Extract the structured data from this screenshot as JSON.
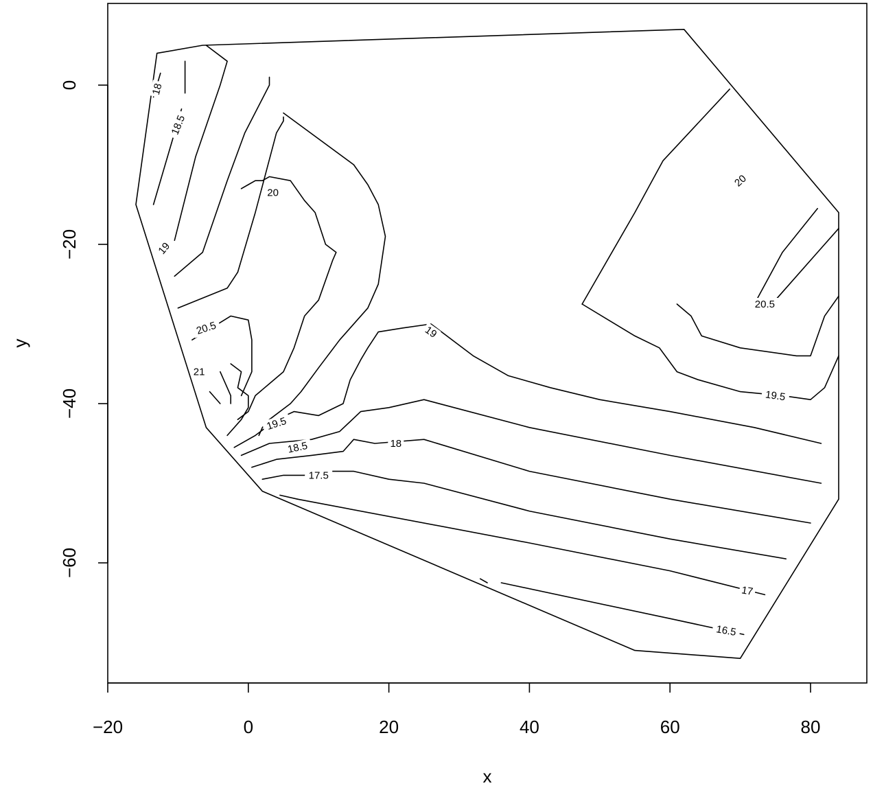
{
  "chart_data": {
    "type": "contour",
    "xlabel": "x",
    "ylabel": "y",
    "xlim": [
      -20,
      88
    ],
    "ylim": [
      -75,
      10
    ],
    "x_ticks": [
      -20,
      0,
      20,
      40,
      60,
      80
    ],
    "y_ticks": [
      0,
      -20,
      -40,
      -60
    ],
    "x_tick_labels": [
      "−20",
      "0",
      "20",
      "40",
      "60",
      "80"
    ],
    "y_tick_labels": [
      "0",
      "−20",
      "−40",
      "−60"
    ],
    "grid": false,
    "legend": "none",
    "hull": [
      [
        -16,
        -15
      ],
      [
        -13,
        4
      ],
      [
        -6.5,
        5
      ],
      [
        62,
        7
      ],
      [
        84,
        -16
      ],
      [
        84,
        -52
      ],
      [
        70,
        -72
      ],
      [
        55,
        -71
      ],
      [
        2,
        -51
      ],
      [
        -6,
        -43
      ],
      [
        -16,
        -15
      ]
    ],
    "contours": [
      {
        "level": 18,
        "label": "18",
        "segments": [
          [
            [
              -13.5,
              -1.5
            ],
            [
              -12.5,
              1.5
            ]
          ]
        ]
      },
      {
        "level": 18.5,
        "label": "18.5",
        "segments": [
          [
            [
              -13.5,
              -15
            ],
            [
              -9.5,
              -3
            ]
          ],
          [
            [
              -9,
              -1
            ],
            [
              -9,
              3
            ]
          ]
        ]
      },
      {
        "level": 19,
        "label": "19",
        "segments": [
          [
            [
              -10.5,
              -19.5
            ],
            [
              -7.5,
              -9
            ],
            [
              -4,
              0
            ],
            [
              -3,
              3
            ],
            [
              -6,
              5
            ]
          ]
        ]
      },
      {
        "level": 19.5,
        "label": "19.5",
        "segments": [
          [
            [
              -10.5,
              -24
            ],
            [
              -6.5,
              -21
            ],
            [
              -3,
              -12
            ],
            [
              -0.5,
              -6
            ],
            [
              3,
              0
            ],
            [
              3,
              1
            ]
          ]
        ]
      },
      {
        "level": 20,
        "label": "20",
        "segments": [
          [
            [
              -10,
              -28
            ],
            [
              -3,
              -25.5
            ],
            [
              -1.5,
              -23.5
            ],
            [
              1,
              -16
            ],
            [
              4,
              -6
            ],
            [
              5,
              -4.5
            ],
            [
              5,
              -4
            ]
          ],
          [
            [
              5,
              -3.5
            ],
            [
              15,
              -10
            ],
            [
              17,
              -12.5
            ],
            [
              18.5,
              -15
            ],
            [
              19.5,
              -19
            ],
            [
              18.5,
              -25
            ],
            [
              17,
              -28
            ],
            [
              13,
              -32
            ],
            [
              10,
              -35.5
            ],
            [
              7.5,
              -38.5
            ],
            [
              6,
              -40
            ],
            [
              3,
              -42
            ],
            [
              2,
              -43
            ],
            [
              1.5,
              -44
            ]
          ]
        ]
      },
      {
        "level": 20.5,
        "label": "20.5",
        "segments": [
          [
            [
              -1.5,
              -42
            ],
            [
              0,
              -41
            ],
            [
              0.5,
              -40
            ],
            [
              1,
              -39
            ],
            [
              3,
              -37.5
            ],
            [
              5,
              -36
            ],
            [
              6.5,
              -33
            ],
            [
              8,
              -29
            ],
            [
              10,
              -27
            ],
            [
              12,
              -22
            ],
            [
              12.5,
              -21
            ],
            [
              11,
              -20
            ],
            [
              9.5,
              -16
            ],
            [
              8,
              -14.5
            ],
            [
              6,
              -12
            ],
            [
              3,
              -11.5
            ],
            [
              2,
              -12
            ],
            [
              1,
              -12
            ],
            [
              0,
              -12.5
            ],
            [
              -1,
              -13
            ]
          ]
        ]
      },
      {
        "level": 21,
        "label": "21",
        "segments": [
          [
            [
              -5.5,
              -38.5
            ],
            [
              -4,
              -40
            ]
          ],
          [
            [
              -4,
              -36
            ],
            [
              -3,
              -38
            ],
            [
              -2.5,
              -39
            ],
            [
              -2.5,
              -40
            ]
          ]
        ]
      },
      {
        "level": 19.5,
        "label": "19.5",
        "segments": [
          [
            [
              -3,
              -44
            ],
            [
              -1,
              -42
            ],
            [
              0,
              -40.5
            ],
            [
              0,
              -39
            ],
            [
              -1.5,
              -38
            ],
            [
              -1,
              -36
            ],
            [
              -2.5,
              -35
            ]
          ]
        ]
      },
      {
        "level": 20.5,
        "label": "20.5",
        "segments": [
          [
            [
              -8,
              -32
            ],
            [
              -2.5,
              -29
            ],
            [
              0,
              -29.5
            ],
            [
              0.5,
              -32
            ],
            [
              0.5,
              -36
            ],
            [
              -1,
              -39
            ]
          ]
        ]
      },
      {
        "level": 19,
        "label": "19",
        "segments": [
          [
            [
              -2,
              -45.5
            ],
            [
              1,
              -44
            ],
            [
              4,
              -42
            ],
            [
              6.5,
              -41
            ],
            [
              10,
              -41.5
            ],
            [
              13.5,
              -40
            ],
            [
              14.5,
              -37
            ],
            [
              16,
              -34.5
            ],
            [
              17,
              -33
            ],
            [
              18.5,
              -31
            ],
            [
              22,
              -30.5
            ],
            [
              26,
              -30
            ],
            [
              32,
              -34
            ],
            [
              37,
              -36.5
            ],
            [
              43,
              -38
            ],
            [
              50,
              -39.5
            ],
            [
              60,
              -41
            ],
            [
              72,
              -43
            ],
            [
              81.5,
              -45
            ]
          ]
        ]
      },
      {
        "level": 18.5,
        "label": "18.5",
        "segments": [
          [
            [
              -1,
              -46.5
            ],
            [
              3,
              -45
            ],
            [
              9,
              -44.5
            ],
            [
              13,
              -43.5
            ],
            [
              16,
              -41
            ],
            [
              20,
              -40.5
            ],
            [
              25,
              -39.5
            ],
            [
              40,
              -43
            ],
            [
              60,
              -46.5
            ],
            [
              81.5,
              -50
            ]
          ]
        ]
      },
      {
        "level": 18,
        "label": "18",
        "segments": [
          [
            [
              0.5,
              -48
            ],
            [
              4,
              -47
            ],
            [
              9,
              -46.5
            ],
            [
              13.5,
              -46
            ],
            [
              15,
              -44.5
            ],
            [
              18,
              -45
            ],
            [
              25,
              -44.5
            ],
            [
              40,
              -48.5
            ],
            [
              60,
              -52
            ],
            [
              80,
              -55
            ]
          ]
        ]
      },
      {
        "level": 17.5,
        "label": "17.5",
        "segments": [
          [
            [
              2,
              -49.5
            ],
            [
              5,
              -49
            ],
            [
              8,
              -49
            ],
            [
              12,
              -48.5
            ],
            [
              15,
              -48.5
            ],
            [
              20,
              -49.5
            ],
            [
              25,
              -50
            ],
            [
              40,
              -53.5
            ],
            [
              60,
              -57
            ],
            [
              76.5,
              -59.5
            ]
          ]
        ]
      },
      {
        "level": 17,
        "label": "17",
        "segments": [
          [
            [
              4.5,
              -51.5
            ],
            [
              7,
              -52
            ]
          ],
          [
            [
              7,
              -52
            ],
            [
              40,
              -57.5
            ],
            [
              60,
              -61
            ],
            [
              73.5,
              -64
            ]
          ]
        ]
      },
      {
        "level": 16.5,
        "label": "16.5",
        "segments": [
          [
            [
              33,
              -62
            ],
            [
              34,
              -62.5
            ]
          ],
          [
            [
              36,
              -62.5
            ],
            [
              60,
              -67
            ],
            [
              70.5,
              -69
            ]
          ]
        ]
      },
      {
        "level": 20,
        "label": "20",
        "segments": [
          [
            [
              47.5,
              -27.5
            ],
            [
              55,
              -16
            ],
            [
              59,
              -9.5
            ],
            [
              68.5,
              -0.5
            ]
          ]
        ]
      },
      {
        "level": 19.5,
        "label": "19.5",
        "segments": [
          [
            [
              47.5,
              -27.5
            ],
            [
              55,
              -31.5
            ],
            [
              58.5,
              -33
            ],
            [
              61,
              -36
            ],
            [
              64,
              -37
            ],
            [
              70,
              -38.5
            ],
            [
              76,
              -39
            ],
            [
              80,
              -39.5
            ],
            [
              82,
              -38
            ],
            [
              84,
              -34
            ]
          ]
        ]
      },
      {
        "level": 20,
        "label": "20",
        "segments": [
          [
            [
              61,
              -27.5
            ],
            [
              63,
              -29
            ],
            [
              64.5,
              -31.5
            ],
            [
              70,
              -33
            ],
            [
              78,
              -34
            ],
            [
              80,
              -34
            ],
            [
              82,
              -29
            ],
            [
              84,
              -26.5
            ]
          ]
        ]
      },
      {
        "level": 20.5,
        "label": "20.5",
        "segments": [
          [
            [
              72,
              -27.5
            ],
            [
              76,
              -21
            ],
            [
              81,
              -15.5
            ]
          ],
          [
            [
              75,
              -27
            ],
            [
              81,
              -21
            ],
            [
              84,
              -18
            ]
          ]
        ]
      }
    ],
    "contour_labels": [
      {
        "text": "18",
        "x": -13,
        "y": -0.5,
        "angle": -75
      },
      {
        "text": "18.5",
        "x": -10,
        "y": -5,
        "angle": -68
      },
      {
        "text": "19",
        "x": -12,
        "y": -20.5,
        "angle": -50
      },
      {
        "text": "20",
        "x": 3.5,
        "y": -13.5,
        "angle": 0
      },
      {
        "text": "20.5",
        "x": -6,
        "y": -30.5,
        "angle": -18
      },
      {
        "text": "21",
        "x": -7,
        "y": -36,
        "angle": 0
      },
      {
        "text": "19.5",
        "x": 4,
        "y": -42.5,
        "angle": -18
      },
      {
        "text": "18.5",
        "x": 7,
        "y": -45.5,
        "angle": -12
      },
      {
        "text": "18",
        "x": 21,
        "y": -45,
        "angle": 0
      },
      {
        "text": "17.5",
        "x": 10,
        "y": -49,
        "angle": 0
      },
      {
        "text": "19",
        "x": 26,
        "y": -31,
        "angle": 35
      },
      {
        "text": "17",
        "x": 71,
        "y": -63.5,
        "angle": 10
      },
      {
        "text": "16.5",
        "x": 68,
        "y": -68.5,
        "angle": 10
      },
      {
        "text": "19.5",
        "x": 75,
        "y": -39,
        "angle": 8
      },
      {
        "text": "20",
        "x": 70,
        "y": -12,
        "angle": -42
      },
      {
        "text": "20.5",
        "x": 73.5,
        "y": -27.5,
        "angle": 0
      }
    ]
  }
}
